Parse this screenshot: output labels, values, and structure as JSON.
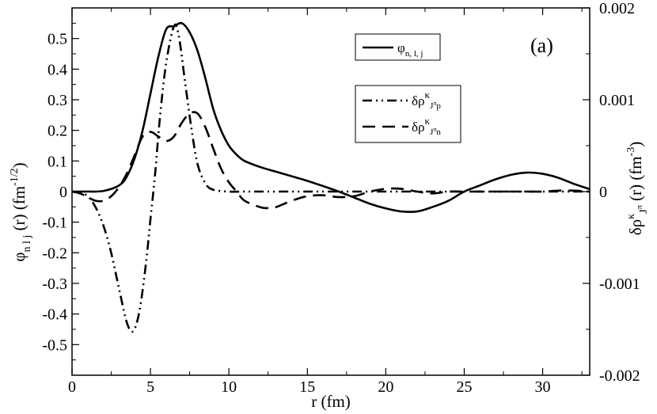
{
  "chart_data": {
    "type": "line",
    "panel_label": "(a)",
    "xlabel": "r (fm)",
    "ylabel_left": {
      "base": "φ",
      "sub": "n l j",
      "rest": " (r)  (fm",
      "sup": "-1/2",
      "close": ")"
    },
    "ylabel_right": {
      "base": "δρ",
      "sup": "κ",
      "sub": "J",
      "subsup": "π",
      "rest": " (r)  (fm",
      "unitsup": "-3",
      "close": ")"
    },
    "xlim": [
      0,
      33
    ],
    "ylim_left": [
      -0.6,
      0.6
    ],
    "ylim_right": [
      -0.002,
      0.002
    ],
    "x_ticks": [
      0,
      5,
      10,
      15,
      20,
      25,
      30
    ],
    "x_tick_labels": [
      "0",
      "5",
      "10",
      "15",
      "20",
      "25",
      "30"
    ],
    "y_left_ticks": [
      0.5,
      0.4,
      0.3,
      0.2,
      0.1,
      0,
      -0.1,
      -0.2,
      -0.3,
      -0.4,
      -0.5
    ],
    "y_left_tick_labels": [
      "0.5",
      "0.4",
      "0.3",
      "0.2",
      "0.1",
      "0",
      "-0.1",
      "-0.2",
      "-0.3",
      "-0.4",
      "-0.5"
    ],
    "y_right_ticks": [
      0.002,
      0.001,
      0,
      -0.001,
      -0.002
    ],
    "y_right_tick_labels": [
      "0.002",
      "0.001",
      "0",
      "-0.001",
      "-0.002"
    ],
    "grid": false,
    "legend": [
      {
        "base": "φ",
        "sub": "n, l, j",
        "style": "solid"
      },
      {
        "base": "δρ",
        "sup": "κ",
        "sub": "J",
        "subsup": "π",
        "subtail": "p",
        "style": "dash-dot-dot"
      },
      {
        "base": "δρ",
        "sup": "κ",
        "sub": "J",
        "subsup": "π",
        "subtail": "n",
        "style": "dashed"
      }
    ],
    "series": [
      {
        "id": "phi",
        "axis": "left",
        "style": "solid",
        "x": [
          0,
          1,
          2,
          3,
          3.5,
          4,
          4.5,
          5,
          5.5,
          6,
          6.5,
          7,
          7.5,
          8,
          8.5,
          9,
          9.5,
          10,
          10.5,
          11,
          12,
          13,
          14,
          15,
          16,
          17,
          18,
          19,
          20,
          21,
          22,
          23,
          24,
          25,
          26,
          27,
          28,
          29,
          30,
          31,
          32,
          33
        ],
        "y": [
          0,
          0.0,
          0.002,
          0.02,
          0.05,
          0.11,
          0.2,
          0.32,
          0.44,
          0.53,
          0.54,
          0.55,
          0.52,
          0.46,
          0.37,
          0.27,
          0.2,
          0.15,
          0.12,
          0.1,
          0.08,
          0.065,
          0.05,
          0.035,
          0.018,
          0.0,
          -0.02,
          -0.04,
          -0.055,
          -0.065,
          -0.065,
          -0.05,
          -0.03,
          0.0,
          0.02,
          0.04,
          0.055,
          0.062,
          0.058,
          0.045,
          0.025,
          0.008
        ]
      },
      {
        "id": "drho_p",
        "axis": "right",
        "style": "dash-dot-dot",
        "x": [
          0,
          0.5,
          1,
          1.5,
          2,
          2.5,
          3,
          3.5,
          3.9,
          4.3,
          4.7,
          5,
          5.3,
          5.6,
          6,
          6.5,
          6.8,
          7.2,
          7.6,
          8,
          8.5,
          9,
          10,
          11,
          12,
          14,
          16,
          18,
          20,
          22,
          24,
          26,
          28,
          30,
          32,
          33
        ],
        "y": [
          0,
          -1e-05,
          -5e-05,
          -0.00017,
          -0.00037,
          -0.00067,
          -0.00106,
          -0.00143,
          -0.00152,
          -0.0013,
          -0.0008,
          -0.0003,
          0.0002,
          0.0008,
          0.0014,
          0.0018,
          0.0017,
          0.0012,
          0.0007,
          0.0003,
          9e-05,
          2e-05,
          0.0,
          0.0,
          0.0,
          0.0,
          0.0,
          0.0,
          0.0,
          0.0,
          0.0,
          0.0,
          0.0,
          0.0,
          0.0,
          0.0
        ]
      },
      {
        "id": "drho_n",
        "axis": "right",
        "style": "dashed",
        "x": [
          0,
          0.5,
          1,
          1.5,
          2,
          2.5,
          3,
          3.5,
          4,
          4.5,
          5,
          5.5,
          6,
          6.5,
          7,
          7.5,
          8,
          8.5,
          9,
          9.5,
          10,
          10.5,
          11,
          12,
          12.5,
          13,
          14,
          15,
          16,
          17,
          18,
          19,
          20,
          21,
          22,
          23,
          24,
          25,
          26,
          27,
          28,
          29,
          30,
          31,
          32,
          33
        ],
        "y": [
          0,
          -2e-05,
          -6e-05,
          -0.0001,
          -0.0001,
          -5e-05,
          5e-05,
          0.0002,
          0.0004,
          0.0006,
          0.00065,
          0.0006,
          0.00055,
          0.0006,
          0.00075,
          0.00085,
          0.00085,
          0.0007,
          0.00047,
          0.00025,
          0.0001,
          0.0,
          -0.0001,
          -0.00017,
          -0.00018,
          -0.00017,
          -0.0001,
          -5e-05,
          -4e-05,
          -6e-05,
          -5e-05,
          0.0,
          3e-05,
          3e-05,
          0.0,
          -2e-05,
          0.0,
          0.0,
          0.0,
          0.0,
          0.0,
          0.0,
          0.0,
          1e-05,
          1e-05,
          0.0
        ]
      }
    ]
  }
}
